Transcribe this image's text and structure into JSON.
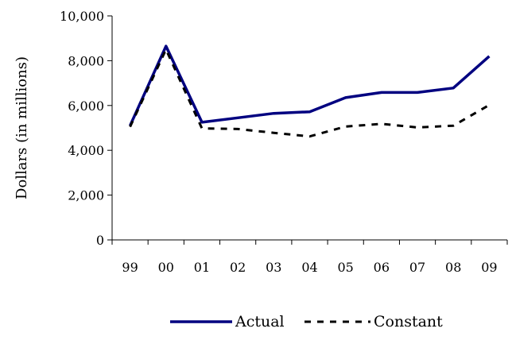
{
  "chart_data": {
    "type": "line",
    "title": "",
    "xlabel": "",
    "ylabel": "Dollars (in millions)",
    "categories": [
      "99",
      "00",
      "01",
      "02",
      "03",
      "04",
      "05",
      "06",
      "07",
      "08",
      "09"
    ],
    "ylim": [
      0,
      10000
    ],
    "yticks": [
      0,
      2000,
      4000,
      6000,
      8000,
      10000
    ],
    "ytick_labels": [
      "0",
      "2,000",
      "4,000",
      "6,000",
      "8,000",
      "10,000"
    ],
    "grid": false,
    "legend_position": "bottom",
    "series": [
      {
        "name": "Actual",
        "color": "#000080",
        "style": "solid",
        "values": [
          5100,
          8650,
          5250,
          5450,
          5650,
          5720,
          6350,
          6580,
          6580,
          6780,
          8200
        ]
      },
      {
        "name": "Constant",
        "color": "#000000",
        "style": "dashed",
        "values": [
          5050,
          8500,
          4980,
          4950,
          4780,
          4620,
          5060,
          5180,
          5020,
          5100,
          6020
        ]
      }
    ]
  }
}
